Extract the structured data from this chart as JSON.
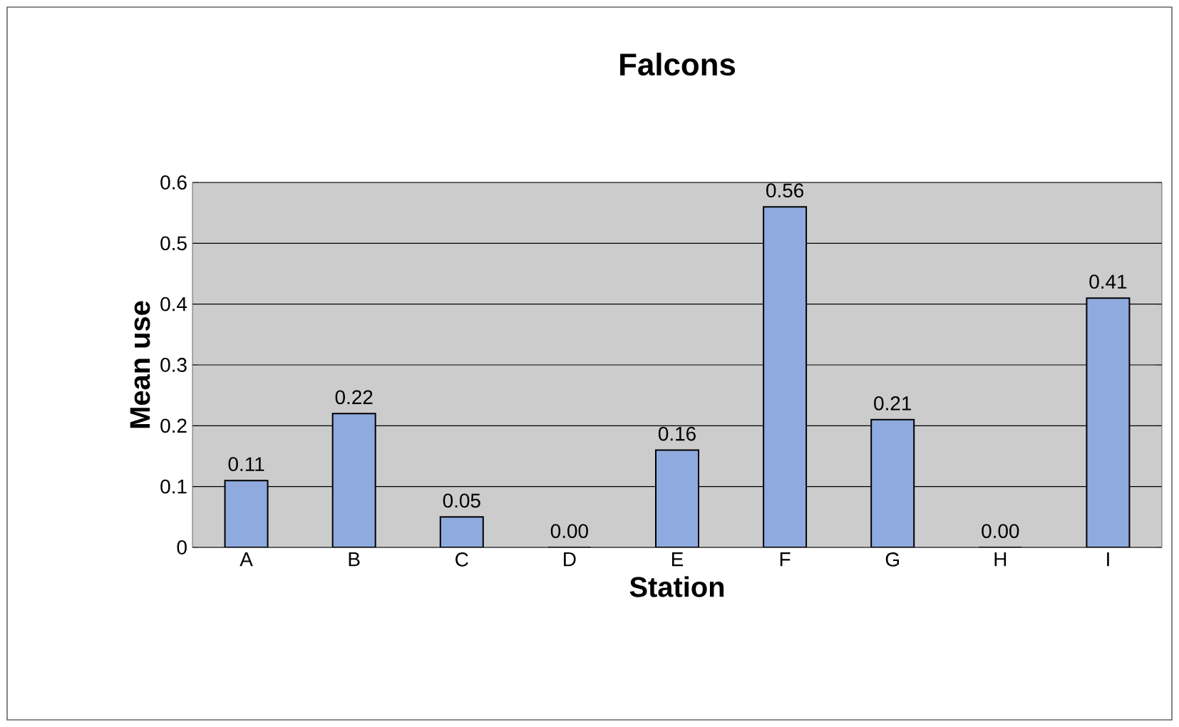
{
  "chart_data": {
    "type": "bar",
    "title": "Falcons",
    "xlabel": "Station",
    "ylabel": "Mean use",
    "categories": [
      "A",
      "B",
      "C",
      "D",
      "E",
      "F",
      "G",
      "H",
      "I"
    ],
    "values": [
      0.11,
      0.22,
      0.05,
      0,
      0.16,
      0.56,
      0.21,
      0,
      0.41
    ],
    "value_labels": [
      "0.11",
      "0.22",
      "0.05",
      "0.00",
      "0.16",
      "0.56",
      "0.21",
      "0.00",
      "0.41"
    ],
    "color": "#8eaadf",
    "ylim": [
      0,
      0.6
    ],
    "yticks": [
      0,
      0.1,
      0.2,
      0.3,
      0.4,
      0.5,
      0.6
    ],
    "grid": "y"
  }
}
